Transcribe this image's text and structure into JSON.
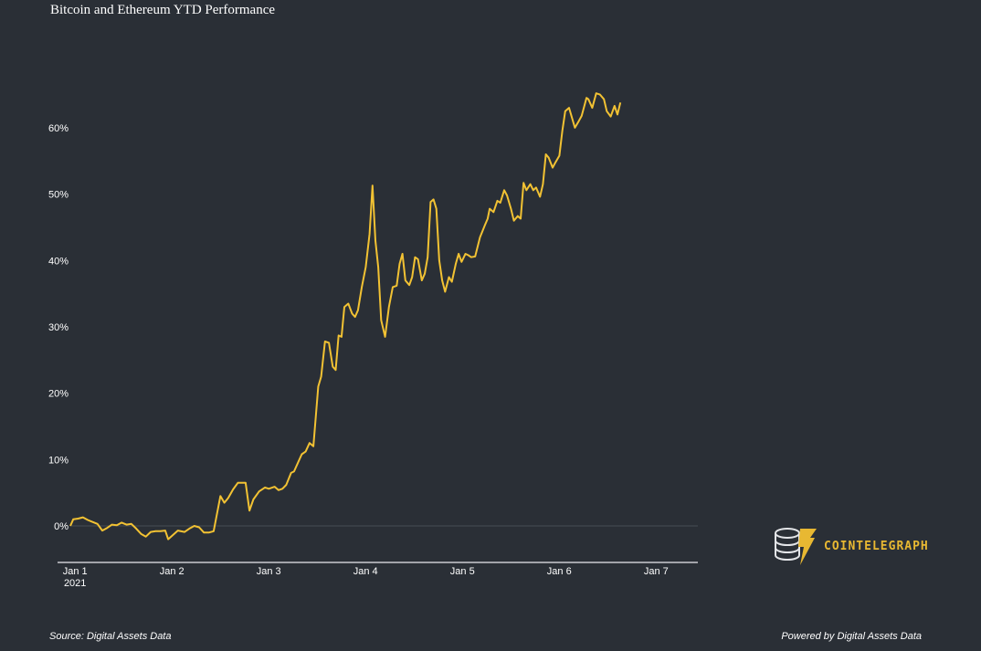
{
  "title": "Bitcoin and Ethereum YTD Performance",
  "source": "Source: Digital Assets Data",
  "powered_by": "Powered by Digital Assets Data",
  "logo": {
    "text": "COINTELEGRAPH",
    "icon": "coins-lightning-icon",
    "color": "#e8b832"
  },
  "colors": {
    "background": "#2a2f36",
    "line": "#f2c233",
    "axis": "#c9ccd1",
    "zero_line": "#474c54"
  },
  "chart_data": {
    "type": "line",
    "title": "Bitcoin and Ethereum YTD Performance",
    "xlabel": "",
    "ylabel": "",
    "x_ticks": [
      {
        "value": 0,
        "label": "Jan 1",
        "sublabel": "2021"
      },
      {
        "value": 1,
        "label": "Jan 2",
        "sublabel": ""
      },
      {
        "value": 2,
        "label": "Jan 3",
        "sublabel": ""
      },
      {
        "value": 3,
        "label": "Jan 4",
        "sublabel": ""
      },
      {
        "value": 4,
        "label": "Jan 5",
        "sublabel": ""
      },
      {
        "value": 5,
        "label": "Jan 6",
        "sublabel": ""
      },
      {
        "value": 6,
        "label": "Jan 7",
        "sublabel": ""
      }
    ],
    "y_ticks": [
      {
        "value": 0,
        "label": "0%"
      },
      {
        "value": 10,
        "label": "10%"
      },
      {
        "value": 20,
        "label": "20%"
      },
      {
        "value": 30,
        "label": "30%"
      },
      {
        "value": 40,
        "label": "40%"
      },
      {
        "value": 50,
        "label": "50%"
      },
      {
        "value": 60,
        "label": "60%"
      }
    ],
    "xlim": [
      -0.03,
      6.45
    ],
    "ylim": [
      -5.5,
      71
    ],
    "grid": false,
    "zero_line": true,
    "series": [
      {
        "values": [
          [
            -0.03,
            0.0
          ],
          [
            0.0,
            1.0
          ],
          [
            0.05,
            1.1
          ],
          [
            0.1,
            1.3
          ],
          [
            0.15,
            0.9
          ],
          [
            0.2,
            0.6
          ],
          [
            0.25,
            0.3
          ],
          [
            0.3,
            -0.7
          ],
          [
            0.35,
            -0.3
          ],
          [
            0.4,
            0.2
          ],
          [
            0.45,
            0.1
          ],
          [
            0.5,
            0.5
          ],
          [
            0.55,
            0.2
          ],
          [
            0.6,
            0.3
          ],
          [
            0.65,
            -0.4
          ],
          [
            0.7,
            -1.2
          ],
          [
            0.75,
            -1.6
          ],
          [
            0.8,
            -0.9
          ],
          [
            0.85,
            -0.8
          ],
          [
            0.9,
            -0.8
          ],
          [
            0.95,
            -0.7
          ],
          [
            0.98,
            -2.0
          ],
          [
            1.02,
            -1.5
          ],
          [
            1.08,
            -0.7
          ],
          [
            1.15,
            -0.9
          ],
          [
            1.2,
            -0.4
          ],
          [
            1.25,
            0.0
          ],
          [
            1.3,
            -0.2
          ],
          [
            1.35,
            -1.0
          ],
          [
            1.4,
            -1.0
          ],
          [
            1.45,
            -0.8
          ],
          [
            1.52,
            4.5
          ],
          [
            1.56,
            3.5
          ],
          [
            1.6,
            4.2
          ],
          [
            1.65,
            5.5
          ],
          [
            1.7,
            6.5
          ],
          [
            1.75,
            6.5
          ],
          [
            1.78,
            6.5
          ],
          [
            1.82,
            2.3
          ],
          [
            1.86,
            4.0
          ],
          [
            1.92,
            5.2
          ],
          [
            1.98,
            5.8
          ],
          [
            2.02,
            5.6
          ],
          [
            2.08,
            5.9
          ],
          [
            2.12,
            5.4
          ],
          [
            2.16,
            5.6
          ],
          [
            2.2,
            6.2
          ],
          [
            2.25,
            8.0
          ],
          [
            2.28,
            8.2
          ],
          [
            2.32,
            9.5
          ],
          [
            2.36,
            10.8
          ],
          [
            2.4,
            11.2
          ],
          [
            2.44,
            12.5
          ],
          [
            2.48,
            12.0
          ],
          [
            2.53,
            21.0
          ],
          [
            2.56,
            22.5
          ],
          [
            2.6,
            27.8
          ],
          [
            2.64,
            27.6
          ],
          [
            2.68,
            24.0
          ],
          [
            2.71,
            23.5
          ],
          [
            2.74,
            28.7
          ],
          [
            2.77,
            28.5
          ],
          [
            2.8,
            33.0
          ],
          [
            2.84,
            33.5
          ],
          [
            2.88,
            32.0
          ],
          [
            2.91,
            31.5
          ],
          [
            2.94,
            32.5
          ],
          [
            2.98,
            36.0
          ],
          [
            3.02,
            39.0
          ],
          [
            3.06,
            44.0
          ],
          [
            3.09,
            51.3
          ],
          [
            3.12,
            43.0
          ],
          [
            3.15,
            39.0
          ],
          [
            3.18,
            31.0
          ],
          [
            3.22,
            28.5
          ],
          [
            3.26,
            33.0
          ],
          [
            3.3,
            36.0
          ],
          [
            3.34,
            36.2
          ],
          [
            3.37,
            39.5
          ],
          [
            3.4,
            41.0
          ],
          [
            3.43,
            37.0
          ],
          [
            3.47,
            36.3
          ],
          [
            3.5,
            37.5
          ],
          [
            3.53,
            40.5
          ],
          [
            3.56,
            40.2
          ],
          [
            3.6,
            37.0
          ],
          [
            3.63,
            38.0
          ],
          [
            3.66,
            40.5
          ],
          [
            3.69,
            48.8
          ],
          [
            3.72,
            49.2
          ],
          [
            3.75,
            47.8
          ],
          [
            3.78,
            40.0
          ],
          [
            3.81,
            37.0
          ],
          [
            3.84,
            35.3
          ],
          [
            3.88,
            37.5
          ],
          [
            3.91,
            36.8
          ],
          [
            3.95,
            39.5
          ],
          [
            3.98,
            41.0
          ],
          [
            4.01,
            39.8
          ],
          [
            4.05,
            41.0
          ],
          [
            4.08,
            40.8
          ],
          [
            4.11,
            40.5
          ],
          [
            4.15,
            40.6
          ],
          [
            4.2,
            43.5
          ],
          [
            4.25,
            45.3
          ],
          [
            4.28,
            46.3
          ],
          [
            4.3,
            47.8
          ],
          [
            4.34,
            47.3
          ],
          [
            4.38,
            49.0
          ],
          [
            4.41,
            48.7
          ],
          [
            4.45,
            50.6
          ],
          [
            4.48,
            49.8
          ],
          [
            4.52,
            47.8
          ],
          [
            4.55,
            46.0
          ],
          [
            4.59,
            46.7
          ],
          [
            4.62,
            46.3
          ],
          [
            4.65,
            51.7
          ],
          [
            4.68,
            50.6
          ],
          [
            4.72,
            51.5
          ],
          [
            4.75,
            50.6
          ],
          [
            4.78,
            51.0
          ],
          [
            4.82,
            49.6
          ],
          [
            4.85,
            51.5
          ],
          [
            4.88,
            56.0
          ],
          [
            4.91,
            55.5
          ],
          [
            4.95,
            54.0
          ],
          [
            4.98,
            54.8
          ],
          [
            5.02,
            55.8
          ],
          [
            5.05,
            59.5
          ],
          [
            5.08,
            62.5
          ],
          [
            5.12,
            63.0
          ],
          [
            5.15,
            61.5
          ],
          [
            5.18,
            60.0
          ],
          [
            5.22,
            61.0
          ],
          [
            5.25,
            61.8
          ],
          [
            5.3,
            64.5
          ],
          [
            5.32,
            64.3
          ],
          [
            5.36,
            63.0
          ],
          [
            5.4,
            65.2
          ],
          [
            5.44,
            65.0
          ],
          [
            5.48,
            64.3
          ],
          [
            5.51,
            62.5
          ],
          [
            5.55,
            61.7
          ],
          [
            5.59,
            63.3
          ],
          [
            5.62,
            62.0
          ],
          [
            5.65,
            63.8
          ]
        ]
      }
    ]
  }
}
